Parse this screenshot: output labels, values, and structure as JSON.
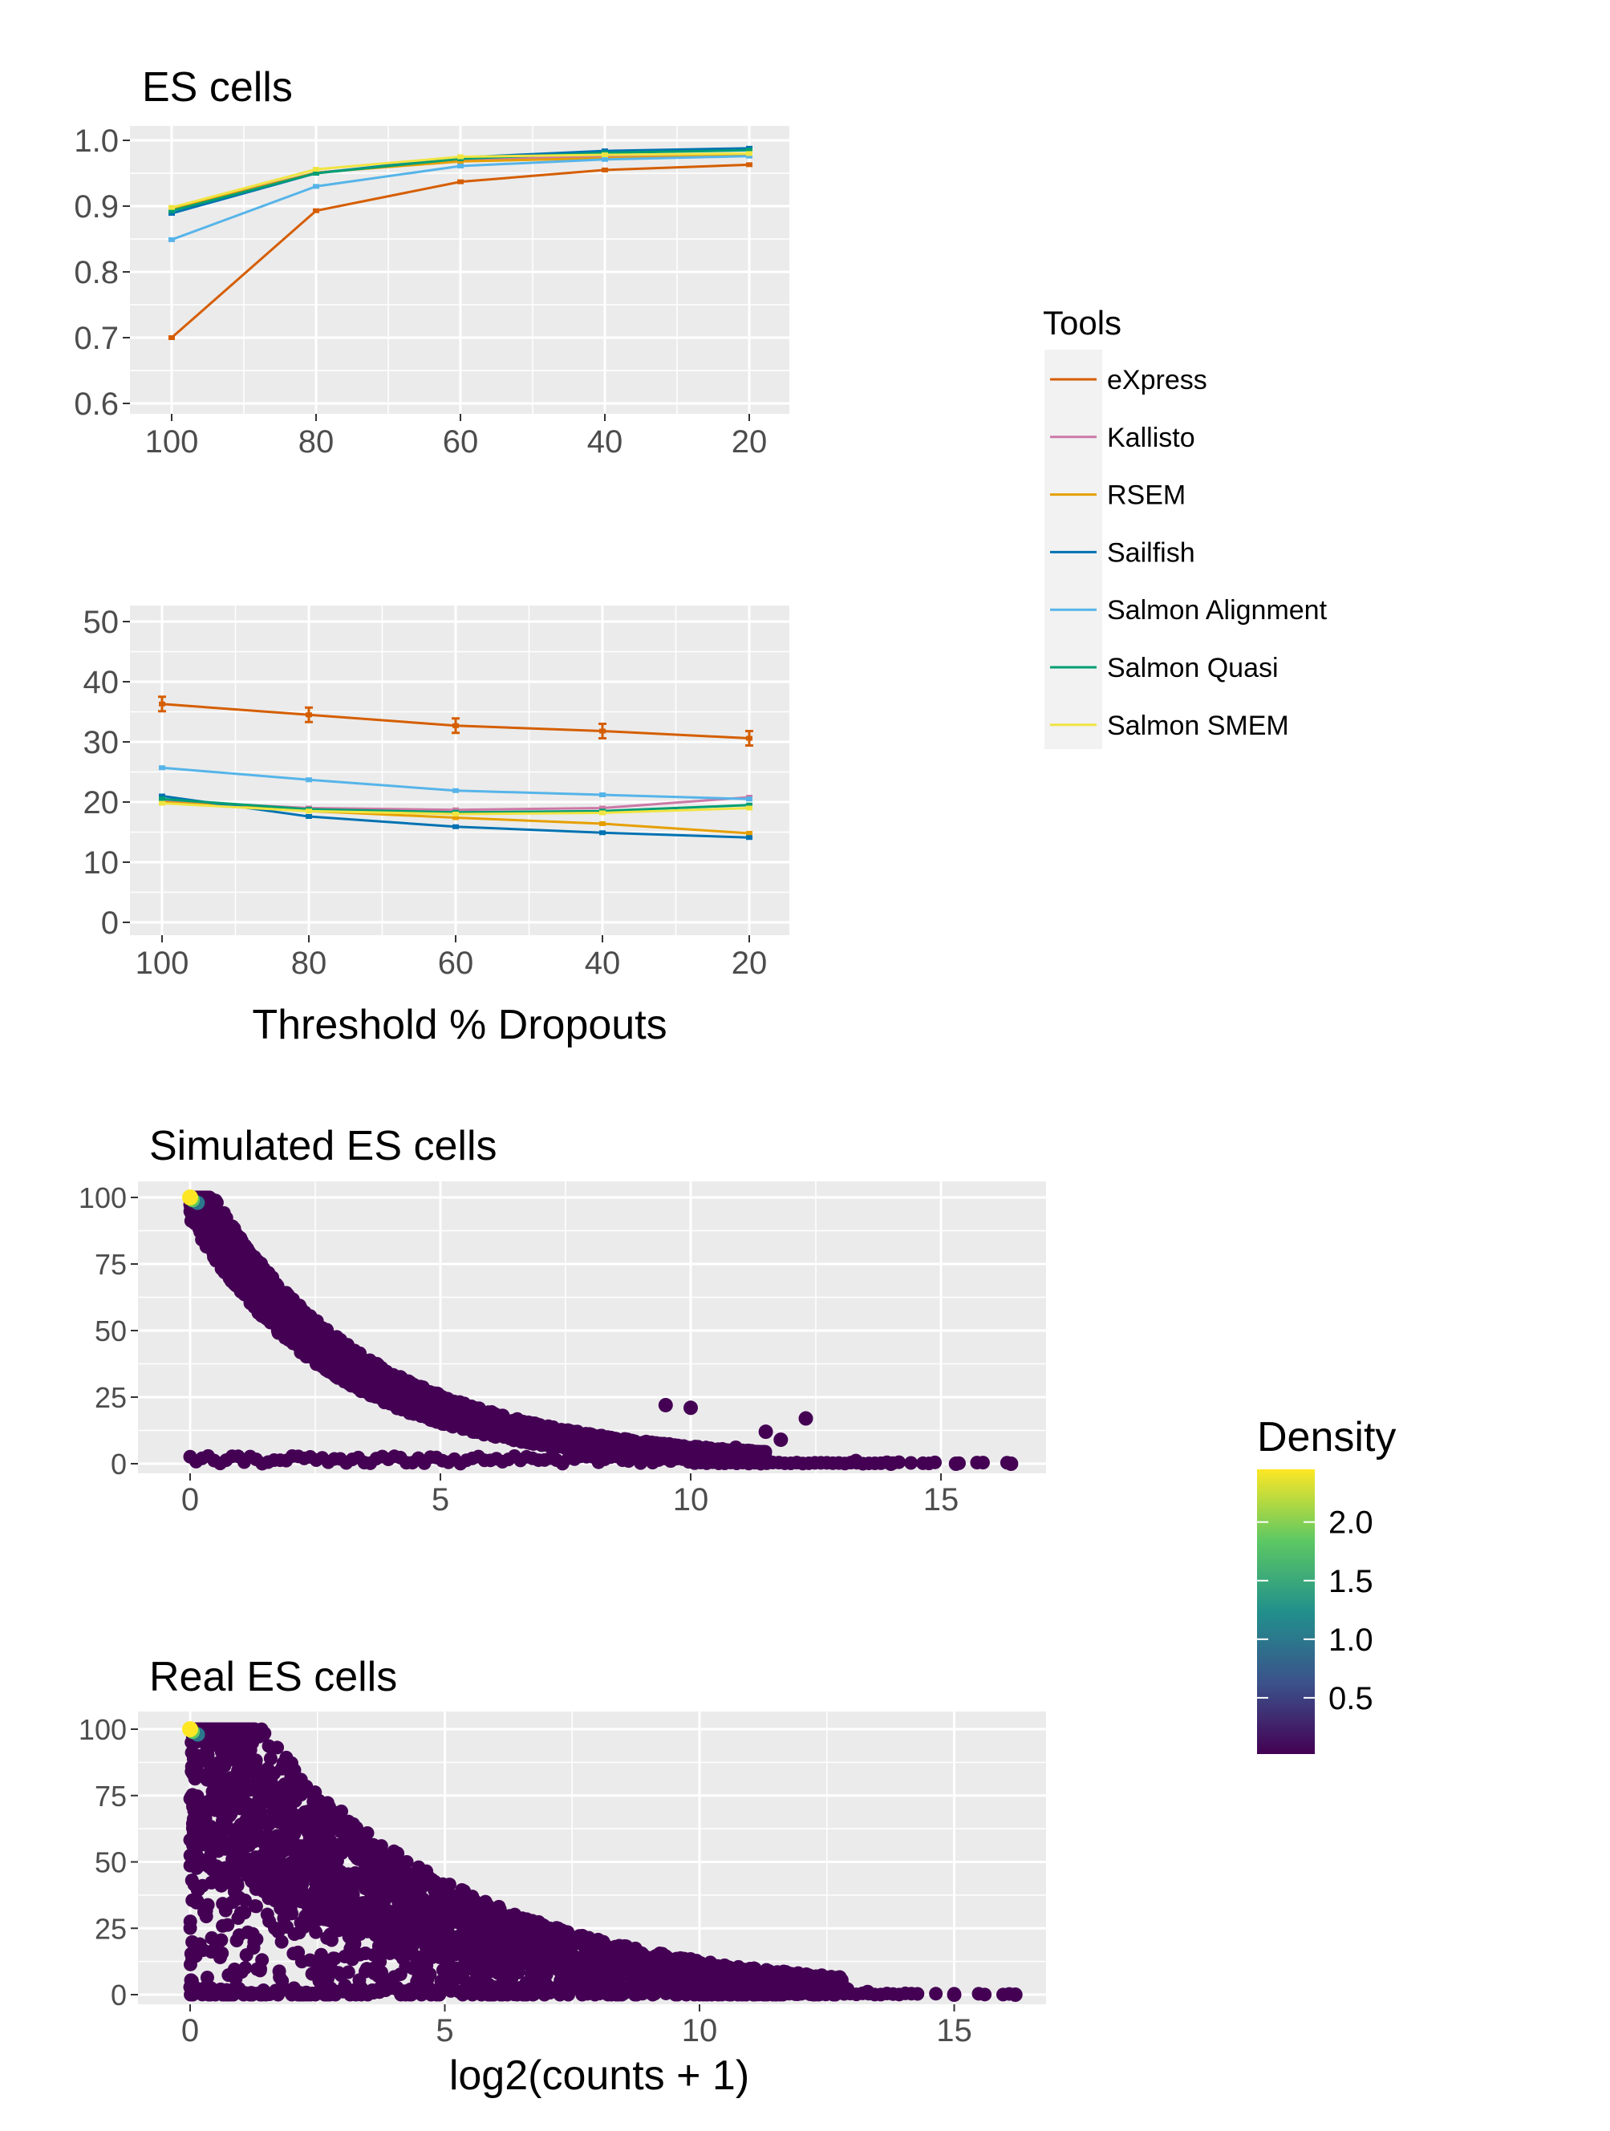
{
  "chart_data": [
    {
      "type": "line",
      "title": "ES cells",
      "xlabel": "",
      "ylabel": "",
      "x": [
        100,
        80,
        60,
        40,
        20
      ],
      "x_reversed": true,
      "ylim": [
        0.6,
        1.0
      ],
      "yticks": [
        0.6,
        0.7,
        0.8,
        0.9,
        1.0
      ],
      "ytick_labels": [
        "0.6",
        "0.7",
        "0.8",
        "0.9",
        "1.0"
      ],
      "xtick_labels": [
        "100",
        "80",
        "60",
        "40",
        "20"
      ],
      "grid": true,
      "series": [
        {
          "name": "eXpress",
          "values": [
            0.7,
            0.893,
            0.937,
            0.955,
            0.963
          ]
        },
        {
          "name": "Kallisto",
          "values": [
            0.897,
            0.951,
            0.97,
            0.976,
            0.979
          ]
        },
        {
          "name": "RSEM",
          "values": [
            0.895,
            0.951,
            0.968,
            0.973,
            0.977
          ]
        },
        {
          "name": "Sailfish",
          "values": [
            0.889,
            0.95,
            0.974,
            0.984,
            0.988
          ]
        },
        {
          "name": "Salmon Alignment",
          "values": [
            0.849,
            0.93,
            0.961,
            0.971,
            0.976
          ]
        },
        {
          "name": "Salmon Quasi",
          "values": [
            0.893,
            0.95,
            0.972,
            0.981,
            0.985
          ]
        },
        {
          "name": "Salmon SMEM",
          "values": [
            0.898,
            0.956,
            0.975,
            0.978,
            0.98
          ]
        }
      ]
    },
    {
      "type": "line",
      "title": "",
      "xlabel": "Threshold % Dropouts",
      "ylabel": "",
      "x": [
        100,
        80,
        60,
        40,
        20
      ],
      "x_reversed": true,
      "ylim": [
        0,
        50
      ],
      "yticks": [
        0,
        10,
        20,
        30,
        40,
        50
      ],
      "ytick_labels": [
        "0",
        "10",
        "20",
        "30",
        "40",
        "50"
      ],
      "xtick_labels": [
        "100",
        "80",
        "60",
        "40",
        "20"
      ],
      "grid": true,
      "series": [
        {
          "name": "eXpress",
          "values": [
            36.3,
            34.5,
            32.7,
            31.8,
            30.6
          ]
        },
        {
          "name": "Kallisto",
          "values": [
            20.2,
            19.0,
            18.7,
            19.0,
            20.8
          ]
        },
        {
          "name": "RSEM",
          "values": [
            20.0,
            18.5,
            17.4,
            16.4,
            14.8
          ]
        },
        {
          "name": "Sailfish",
          "values": [
            21.0,
            17.6,
            15.9,
            14.9,
            14.1
          ]
        },
        {
          "name": "Salmon Alignment",
          "values": [
            25.7,
            23.7,
            21.9,
            21.2,
            20.5
          ]
        },
        {
          "name": "Salmon Quasi",
          "values": [
            20.5,
            18.8,
            18.3,
            18.5,
            19.5
          ]
        },
        {
          "name": "Salmon SMEM",
          "values": [
            19.8,
            18.5,
            18.0,
            18.2,
            19.0
          ]
        }
      ]
    },
    {
      "type": "scatter",
      "title": "Simulated ES cells",
      "xlabel": "",
      "ylabel": "",
      "xlim": [
        -1,
        17
      ],
      "ylim": [
        0,
        100
      ],
      "xticks": [
        0,
        5,
        10,
        15
      ],
      "xtick_labels": [
        "0",
        "5",
        "10",
        "15"
      ],
      "yticks": [
        0,
        25,
        50,
        75,
        100
      ],
      "ytick_labels": [
        "0",
        "25",
        "50",
        "75",
        "100"
      ],
      "grid": true,
      "color_by": "Density",
      "points_described": [
        {
          "x": 0,
          "y": 100,
          "density": 2.45
        },
        {
          "x": 16.4,
          "y": 0,
          "density": 0.02
        },
        {
          "x": 12.3,
          "y": 17,
          "density": 0.02
        },
        {
          "x": 11.5,
          "y": 12,
          "density": 0.02
        },
        {
          "x": 10.0,
          "y": 21,
          "density": 0.02
        }
      ]
    },
    {
      "type": "scatter",
      "title": "Real ES cells",
      "xlabel": "log2(counts + 1)",
      "ylabel": "",
      "xlim": [
        -1,
        17
      ],
      "ylim": [
        0,
        100
      ],
      "xticks": [
        0,
        5,
        10,
        15
      ],
      "xtick_labels": [
        "0",
        "5",
        "10",
        "15"
      ],
      "yticks": [
        0,
        25,
        50,
        75,
        100
      ],
      "ytick_labels": [
        "0",
        "25",
        "50",
        "75",
        "100"
      ],
      "grid": true,
      "color_by": "Density",
      "points_described": [
        {
          "x": 0,
          "y": 100,
          "density": 2.45
        },
        {
          "x": 16.2,
          "y": 0,
          "density": 0.02
        },
        {
          "x": 12.2,
          "y": 4,
          "density": 0.02
        },
        {
          "x": 9.9,
          "y": 10,
          "density": 0.02
        }
      ]
    }
  ],
  "legends": {
    "tools": {
      "title": "Tools",
      "placement": "right of top charts",
      "items": [
        {
          "label": "eXpress",
          "color": "#D55E00"
        },
        {
          "label": "Kallisto",
          "color": "#CC79A7"
        },
        {
          "label": "RSEM",
          "color": "#E69F00"
        },
        {
          "label": "Sailfish",
          "color": "#0072B2"
        },
        {
          "label": "Salmon Alignment",
          "color": "#56B4E9"
        },
        {
          "label": "Salmon Quasi",
          "color": "#009E73"
        },
        {
          "label": "Salmon SMEM",
          "color": "#F0E442"
        }
      ]
    },
    "density": {
      "title": "Density",
      "placement": "right of bottom charts",
      "range": [
        0.02,
        2.45
      ],
      "ticks": [
        0.5,
        1.0,
        1.5,
        2.0
      ],
      "tick_labels": [
        "0.5",
        "1.0",
        "1.5",
        "2.0"
      ],
      "colors": [
        "#440154",
        "#3B528B",
        "#21908C",
        "#5DC863",
        "#FDE725"
      ]
    }
  },
  "style": {
    "panel_bg": "#EBEBEB",
    "legend_bg": "#F2F2F2",
    "grid_color": "#FFFFFF",
    "text_color": "#000000",
    "tick_label_color": "#4D4D4D"
  }
}
